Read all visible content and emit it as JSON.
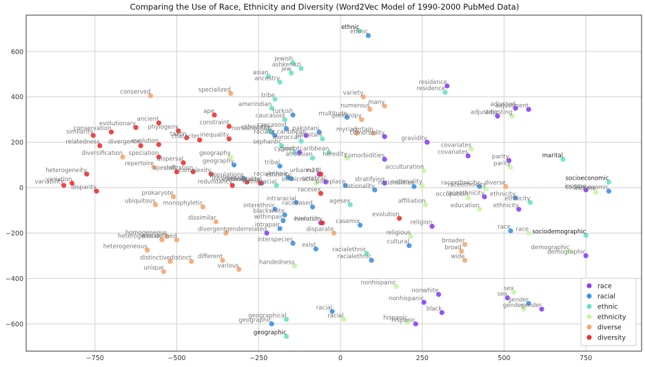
{
  "chart_data": {
    "type": "scatter",
    "title": "Comparing the Use of Race, Ethnicity and Diversity (Word2Vec Model of 1990-2000 PubMed Data)",
    "xlabel": "",
    "ylabel": "",
    "xlim": [
      -960,
      920
    ],
    "ylim": [
      -720,
      760
    ],
    "xticks": [
      -750,
      -500,
      -250,
      0,
      250,
      500,
      750
    ],
    "yticks": [
      -600,
      -400,
      -200,
      0,
      200,
      400,
      600
    ],
    "grid": true,
    "legend_position": "bottom-right",
    "series": [
      {
        "name": "race",
        "color": "#8a3ffc",
        "points": [
          {
            "x": 326,
            "y": 448,
            "label": "residence"
          },
          {
            "x": 135,
            "y": 225,
            "label": "comorbidity"
          },
          {
            "x": 135,
            "y": 125,
            "label": "comorbidities"
          },
          {
            "x": 135,
            "y": 20,
            "label": "stratifying"
          },
          {
            "x": 265,
            "y": 200,
            "label": "gravidity"
          },
          {
            "x": 390,
            "y": 140,
            "label": "covariates"
          },
          {
            "x": 515,
            "y": 120,
            "label": "parity"
          },
          {
            "x": 535,
            "y": 350,
            "label": "adjusted"
          },
          {
            "x": 575,
            "y": 345,
            "label": "adjustment"
          },
          {
            "x": 480,
            "y": 315,
            "label": "adjusting"
          },
          {
            "x": 440,
            "y": -40,
            "label": "raceethnicity"
          },
          {
            "x": 545,
            "y": -95,
            "label": "ethnicity"
          },
          {
            "x": 280,
            "y": -170,
            "label": "religion"
          },
          {
            "x": 300,
            "y": -470,
            "label": "nonwhite"
          },
          {
            "x": 255,
            "y": -505,
            "label": "nonhispanic"
          },
          {
            "x": 310,
            "y": -550,
            "label": "black"
          },
          {
            "x": 230,
            "y": -600,
            "label": "hispanic"
          },
          {
            "x": 510,
            "y": -485,
            "label": "sex"
          },
          {
            "x": 615,
            "y": -535,
            "label": "gender"
          },
          {
            "x": 750,
            "y": -300,
            "label": "demographic"
          },
          {
            "x": 750,
            "y": -10,
            "label": "income"
          },
          {
            "x": -45,
            "y": 25,
            "label": "cerebral"
          },
          {
            "x": -65,
            "y": 60,
            "label": "m10"
          },
          {
            "x": -105,
            "y": 230,
            "label": "caribbean"
          },
          {
            "x": -125,
            "y": 155,
            "label": "cypriot"
          },
          {
            "x": -60,
            "y": -155,
            "label": "evolution"
          },
          {
            "x": -225,
            "y": -200,
            "label": "genderrelated"
          }
        ]
      },
      {
        "name": "racial",
        "color": "#3c91e6",
        "points": [
          {
            "x": 85,
            "y": 670,
            "label": "ethnic"
          },
          {
            "x": 20,
            "y": 310,
            "label": "multitude"
          },
          {
            "x": 15,
            "y": 10,
            "label": "birthplace"
          },
          {
            "x": 105,
            "y": -10,
            "label": "nationality"
          },
          {
            "x": 225,
            "y": 5,
            "label": "nationalities"
          },
          {
            "x": 425,
            "y": 5,
            "label": "raceethnicity"
          },
          {
            "x": 535,
            "y": -45,
            "label": "ethnicity"
          },
          {
            "x": 520,
            "y": -190,
            "label": "race"
          },
          {
            "x": 820,
            "y": -15,
            "label": "socioeconomic"
          },
          {
            "x": 575,
            "y": -510,
            "label": "gender"
          },
          {
            "x": 210,
            "y": -255,
            "label": "cultural"
          },
          {
            "x": 60,
            "y": -165,
            "label": "casemix"
          },
          {
            "x": 95,
            "y": -320,
            "label": "racialethnic"
          },
          {
            "x": -25,
            "y": -545,
            "label": "racial"
          },
          {
            "x": -210,
            "y": -600,
            "label": "geographic"
          },
          {
            "x": -145,
            "y": -245,
            "label": "interspecies"
          },
          {
            "x": -75,
            "y": -270,
            "label": "exist"
          },
          {
            "x": -175,
            "y": -145,
            "label": "withinpair"
          },
          {
            "x": -200,
            "y": -95,
            "label": "interethnic"
          },
          {
            "x": -170,
            "y": -120,
            "label": "blackwhite"
          },
          {
            "x": -185,
            "y": -180,
            "label": "intrapair"
          },
          {
            "x": -135,
            "y": -65,
            "label": "intraracial"
          },
          {
            "x": -85,
            "y": -85,
            "label": "racebased"
          },
          {
            "x": -185,
            "y": 95,
            "label": "tribal"
          },
          {
            "x": -200,
            "y": 230,
            "label": "racially"
          },
          {
            "x": -210,
            "y": 245,
            "label": "nonashkenazi"
          },
          {
            "x": -240,
            "y": 20,
            "label": "ethnicracial"
          },
          {
            "x": -160,
            "y": 45,
            "label": "racialethnic"
          },
          {
            "x": -150,
            "y": 40,
            "label": "ethnicity"
          },
          {
            "x": -325,
            "y": 100,
            "label": "geography"
          },
          {
            "x": -65,
            "y": 245,
            "label": "pakistani"
          },
          {
            "x": -165,
            "y": 260,
            "label": "caucasoid"
          },
          {
            "x": -145,
            "y": 320,
            "label": "turkish"
          },
          {
            "x": -295,
            "y": 40,
            "label": "populations"
          }
        ]
      },
      {
        "name": "ethnic",
        "color": "#66e2c8",
        "points": [
          {
            "x": 58,
            "y": 690,
            "label": "ethnic"
          },
          {
            "x": -145,
            "y": 550,
            "label": "jewish"
          },
          {
            "x": -120,
            "y": 525,
            "label": "ashkenazi"
          },
          {
            "x": -150,
            "y": 505,
            "label": "jew"
          },
          {
            "x": -220,
            "y": 490,
            "label": "asian"
          },
          {
            "x": -185,
            "y": 465,
            "label": "ancestry"
          },
          {
            "x": -200,
            "y": 390,
            "label": "tribe"
          },
          {
            "x": -210,
            "y": 350,
            "label": "amerindian"
          },
          {
            "x": -170,
            "y": 300,
            "label": "caucasoid"
          },
          {
            "x": -215,
            "y": 250,
            "label": "ethnically"
          },
          {
            "x": -120,
            "y": 205,
            "label": "moroccan"
          },
          {
            "x": -180,
            "y": 185,
            "label": "sephardic"
          },
          {
            "x": -55,
            "y": 215,
            "label": "pakistani"
          },
          {
            "x": -140,
            "y": 155,
            "label": "cypriot"
          },
          {
            "x": -85,
            "y": 130,
            "label": "afroasian"
          },
          {
            "x": -35,
            "y": 155,
            "label": "caribbean"
          },
          {
            "x": -195,
            "y": 10,
            "label": "ethnicracial"
          },
          {
            "x": 30,
            "y": -75,
            "label": "agesex"
          },
          {
            "x": 80,
            "y": -290,
            "label": "racialethnic"
          },
          {
            "x": -165,
            "y": -580,
            "label": "geographical"
          },
          {
            "x": -165,
            "y": -655,
            "label": "geographic"
          },
          {
            "x": 580,
            "y": -65,
            "label": "ethnicity"
          },
          {
            "x": 320,
            "y": 420,
            "label": "residence"
          },
          {
            "x": 680,
            "y": 125,
            "label": "marital"
          },
          {
            "x": 820,
            "y": 25,
            "label": "socioeconomic"
          },
          {
            "x": 750,
            "y": -210,
            "label": "sociodemographic"
          }
        ]
      },
      {
        "name": "ethnicity",
        "color": "#c7f5a2",
        "points": [
          {
            "x": -140,
            "y": -345,
            "label": "handedness"
          },
          {
            "x": 400,
            "y": 170,
            "label": "covariates"
          },
          {
            "x": 520,
            "y": 90,
            "label": "parity"
          },
          {
            "x": 525,
            "y": 315,
            "label": "adjusting"
          },
          {
            "x": 260,
            "y": -75,
            "label": "affiliation"
          },
          {
            "x": 390,
            "y": -45,
            "label": "occupation"
          },
          {
            "x": 425,
            "y": -95,
            "label": "education"
          },
          {
            "x": 445,
            "y": -5,
            "label": "raceethnicity"
          },
          {
            "x": 255,
            "y": 75,
            "label": "acculturation"
          },
          {
            "x": 250,
            "y": 10,
            "label": "nationality"
          },
          {
            "x": 215,
            "y": -215,
            "label": "religious"
          },
          {
            "x": 575,
            "y": -200,
            "label": "race"
          },
          {
            "x": 700,
            "y": -280,
            "label": "demographic"
          },
          {
            "x": 530,
            "y": -460,
            "label": "sex"
          },
          {
            "x": 560,
            "y": -535,
            "label": "gender"
          },
          {
            "x": 205,
            "y": -590,
            "label": "hispanic"
          },
          {
            "x": 170,
            "y": -435,
            "label": "nonhispanic"
          },
          {
            "x": 10,
            "y": -580,
            "label": "racial"
          },
          {
            "x": 780,
            "y": -20,
            "label": "income"
          },
          {
            "x": -335,
            "y": 135,
            "label": "geography"
          },
          {
            "x": -75,
            "y": 20,
            "label": "ethnicracial"
          },
          {
            "x": 20,
            "y": 130,
            "label": "heredity"
          }
        ]
      },
      {
        "name": "diverse",
        "color": "#f7a570",
        "points": [
          {
            "x": 70,
            "y": 400,
            "label": "variety"
          },
          {
            "x": 65,
            "y": 300,
            "label": "pleiotropy"
          },
          {
            "x": 90,
            "y": 345,
            "label": "numerous"
          },
          {
            "x": 135,
            "y": 360,
            "label": "many"
          },
          {
            "x": 50,
            "y": 240,
            "label": "myriad"
          },
          {
            "x": 100,
            "y": 240,
            "label": "certain"
          },
          {
            "x": -580,
            "y": 405,
            "label": "conserved"
          },
          {
            "x": -335,
            "y": 415,
            "label": "specialized"
          },
          {
            "x": -665,
            "y": 135,
            "label": "diversification"
          },
          {
            "x": -570,
            "y": 90,
            "label": "repertoire"
          },
          {
            "x": -420,
            "y": -85,
            "label": "monophyletic"
          },
          {
            "x": -565,
            "y": -75,
            "label": "ubiquitous"
          },
          {
            "x": -510,
            "y": -40,
            "label": "prokaryote"
          },
          {
            "x": -380,
            "y": -150,
            "label": "dissimilar"
          },
          {
            "x": -350,
            "y": -200,
            "label": "divergent"
          },
          {
            "x": -530,
            "y": -215,
            "label": "homogeneous"
          },
          {
            "x": -545,
            "y": -230,
            "label": "heterogeneous"
          },
          {
            "x": -500,
            "y": -230,
            "label": "well defined"
          },
          {
            "x": -590,
            "y": -275,
            "label": "heterogeneous"
          },
          {
            "x": -520,
            "y": -325,
            "label": "distinctive"
          },
          {
            "x": -455,
            "y": -325,
            "label": "distinct"
          },
          {
            "x": -360,
            "y": -320,
            "label": "different"
          },
          {
            "x": -310,
            "y": -360,
            "label": "various"
          },
          {
            "x": -540,
            "y": -370,
            "label": "unique"
          },
          {
            "x": 380,
            "y": -250,
            "label": "broader"
          },
          {
            "x": 370,
            "y": -280,
            "label": "broad"
          },
          {
            "x": 380,
            "y": -320,
            "label": "wide"
          },
          {
            "x": 505,
            "y": 5,
            "label": "diverse"
          },
          {
            "x": -20,
            "y": -200,
            "label": "disparate"
          }
        ]
      },
      {
        "name": "diversity",
        "color": "#f03030",
        "points": [
          {
            "x": -845,
            "y": 10,
            "label": "variability"
          },
          {
            "x": -820,
            "y": 20,
            "label": "variation"
          },
          {
            "x": -775,
            "y": 60,
            "label": "heterogeneity"
          },
          {
            "x": -745,
            "y": -15,
            "label": "disparity"
          },
          {
            "x": -755,
            "y": 230,
            "label": "similarity"
          },
          {
            "x": -700,
            "y": 245,
            "label": "conservation"
          },
          {
            "x": -735,
            "y": 185,
            "label": "relatedness"
          },
          {
            "x": -625,
            "y": 265,
            "label": "evolutionary"
          },
          {
            "x": -555,
            "y": 285,
            "label": "ancient"
          },
          {
            "x": -495,
            "y": 250,
            "label": "phylogeny"
          },
          {
            "x": -470,
            "y": 220,
            "label": "taxon"
          },
          {
            "x": -430,
            "y": 210,
            "label": "character"
          },
          {
            "x": -385,
            "y": 320,
            "label": "ape"
          },
          {
            "x": -340,
            "y": 270,
            "label": "constraint"
          },
          {
            "x": -340,
            "y": 215,
            "label": "inequality"
          },
          {
            "x": -610,
            "y": 185,
            "label": "divergence"
          },
          {
            "x": -555,
            "y": 190,
            "label": "evolution"
          },
          {
            "x": -555,
            "y": 135,
            "label": "speciation"
          },
          {
            "x": -480,
            "y": 110,
            "label": "dispersal"
          },
          {
            "x": -500,
            "y": 70,
            "label": "drift"
          },
          {
            "x": -450,
            "y": 70,
            "label": "specialization"
          },
          {
            "x": -395,
            "y": 60,
            "label": "complexity"
          },
          {
            "x": -330,
            "y": 10,
            "label": "redundancy"
          },
          {
            "x": -285,
            "y": 25,
            "label": "dissimilarity"
          },
          {
            "x": -245,
            "y": 20,
            "label": "commonality"
          },
          {
            "x": -60,
            "y": 60,
            "label": "urbanrural"
          },
          {
            "x": -60,
            "y": -25,
            "label": "racesex"
          },
          {
            "x": -55,
            "y": -155,
            "label": "hierarchy"
          },
          {
            "x": 180,
            "y": -135,
            "label": "evolution"
          }
        ]
      }
    ]
  }
}
